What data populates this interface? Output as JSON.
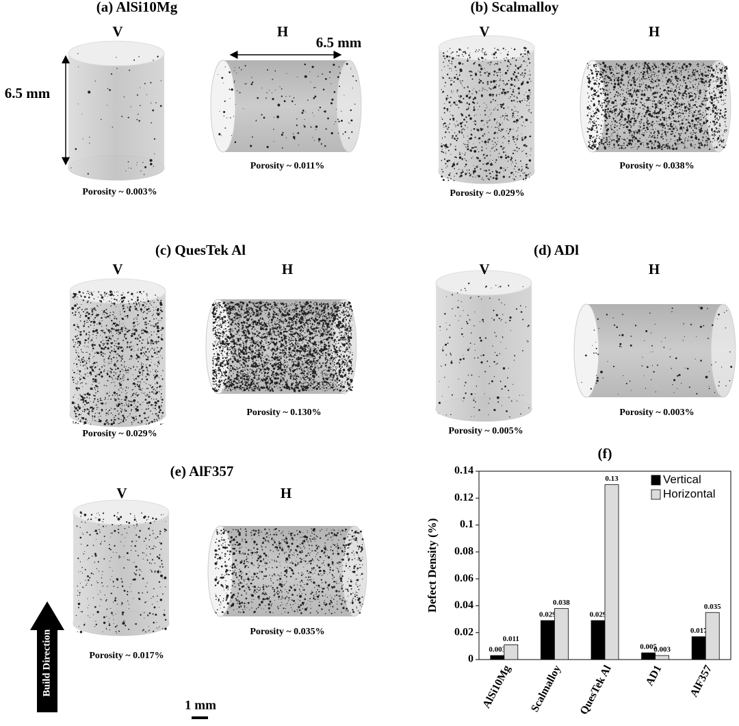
{
  "panels": [
    {
      "title": "(a) AlSi10Mg",
      "v_label": "V",
      "h_label": "H",
      "v_porosity": "Porosity ~ 0.003%",
      "h_porosity": "Porosity ~ 0.011%"
    },
    {
      "title": "(b) Scalmalloy",
      "v_label": "V",
      "h_label": "H",
      "v_porosity": "Porosity ~ 0.029%",
      "h_porosity": "Porosity ~ 0.038%"
    },
    {
      "title": "(c) QuesTek Al",
      "v_label": "V",
      "h_label": "H",
      "v_porosity": "Porosity ~ 0.029%",
      "h_porosity": "Porosity ~ 0.130%"
    },
    {
      "title": "(d) ADl",
      "v_label": "V",
      "h_label": "H",
      "v_porosity": "Porosity ~ 0.005%",
      "h_porosity": "Porosity ~ 0.003%"
    },
    {
      "title": "(e) AlF357",
      "v_label": "V",
      "h_label": "H",
      "v_porosity": "Porosity ~ 0.017%",
      "h_porosity": "Porosity ~ 0.035%"
    }
  ],
  "dimension_labels": {
    "height": "6.5 mm",
    "width": "6.5 mm"
  },
  "build_direction": "Build Direction",
  "scale_bar": "1 mm",
  "chart_data": {
    "type": "bar",
    "title": "(f)",
    "y_label": "Defect Density (%)",
    "categories": [
      "AlSi10Mg",
      "Scalmalloy",
      "QuesTek Al",
      "AD1",
      "AlF357"
    ],
    "series": [
      {
        "name": "Vertical",
        "color": "#000000",
        "values": [
          0.003,
          0.029,
          0.029,
          0.005,
          0.017
        ]
      },
      {
        "name": "Horizontal",
        "color": "#dcdcdc",
        "values": [
          0.011,
          0.038,
          0.13,
          0.003,
          0.035
        ]
      }
    ],
    "ylim": [
      0,
      0.14
    ],
    "yticks": [
      0,
      0.02,
      0.04,
      0.06,
      0.08,
      0.1,
      0.12,
      0.14
    ],
    "legend": "upper right",
    "value_labels_shown": true
  }
}
